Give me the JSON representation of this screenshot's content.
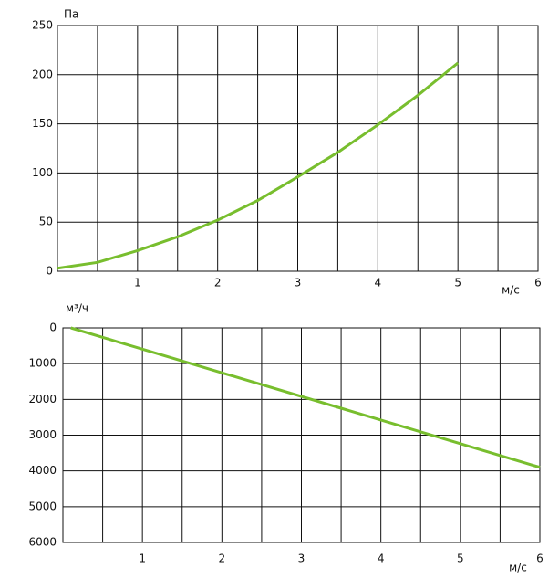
{
  "chart_data": [
    {
      "type": "line",
      "y_label": "Па",
      "x_label": "м/с",
      "x": [
        0,
        0.5,
        1,
        1.5,
        2,
        2.5,
        3,
        3.5,
        4,
        4.5,
        5
      ],
      "series": [
        {
          "color": "#78be2e",
          "values": [
            3,
            9,
            21,
            35,
            52,
            72,
            96,
            121,
            149,
            179,
            212
          ]
        }
      ],
      "xlim": [
        0,
        6
      ],
      "xticks": [
        1,
        2,
        3,
        4,
        5,
        6
      ],
      "ylim": [
        0,
        250
      ],
      "yticks": [
        0,
        50,
        100,
        150,
        200,
        250
      ],
      "grid": true,
      "y_inverted": false
    },
    {
      "type": "line",
      "y_label": "м³/ч",
      "x_label": "м/с",
      "x": [
        0.1,
        6
      ],
      "series": [
        {
          "color": "#78be2e",
          "values": [
            0,
            3900
          ]
        }
      ],
      "xlim": [
        0,
        6
      ],
      "xticks": [
        1,
        2,
        3,
        4,
        5,
        6
      ],
      "ylim": [
        0,
        6000
      ],
      "yticks": [
        0,
        1000,
        2000,
        3000,
        4000,
        5000,
        6000
      ],
      "grid": true,
      "y_inverted": true
    }
  ]
}
